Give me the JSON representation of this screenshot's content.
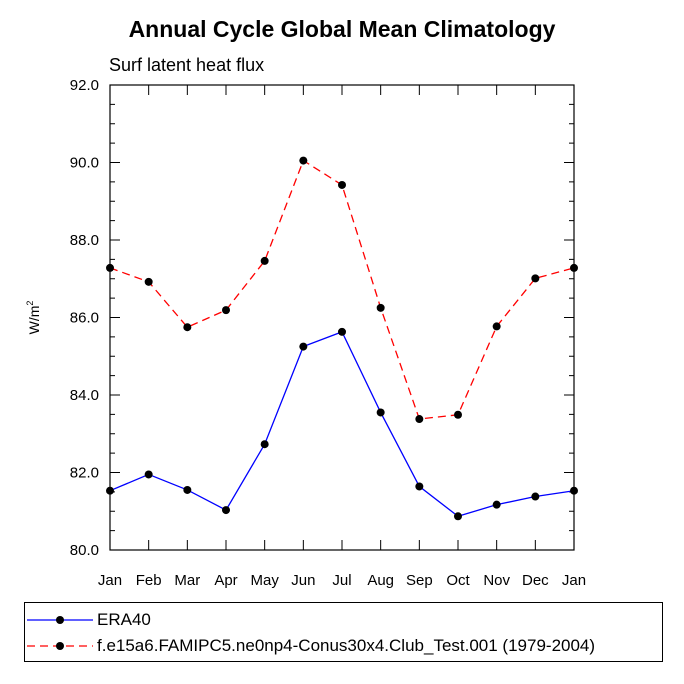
{
  "chart_data": {
    "type": "line",
    "title": "Annual Cycle Global Mean Climatology",
    "subtitle": "Surf latent heat flux",
    "xlabel": "",
    "ylabel": "W/m",
    "ylabel_superscript": "2",
    "categories": [
      "Jan",
      "Feb",
      "Mar",
      "Apr",
      "May",
      "Jun",
      "Jul",
      "Aug",
      "Sep",
      "Oct",
      "Nov",
      "Dec",
      "Jan"
    ],
    "ylim": [
      80.0,
      92.0
    ],
    "yticks": [
      "80.0",
      "82.0",
      "84.0",
      "86.0",
      "88.0",
      "90.0",
      "92.0"
    ],
    "grid": false,
    "legend_position": "bottom",
    "series": [
      {
        "name": "ERA40",
        "color": "#0000ff",
        "dash": "solid",
        "values": [
          81.53,
          81.95,
          81.55,
          81.03,
          82.73,
          85.25,
          85.63,
          83.55,
          81.64,
          80.87,
          81.17,
          81.38,
          81.53
        ]
      },
      {
        "name": "f.e15a6.FAMIPC5.ne0np4-Conus30x4.Club_Test.001 (1979-2004)",
        "color": "#ff0000",
        "dash": "dashed",
        "values": [
          87.28,
          86.92,
          85.75,
          86.19,
          87.46,
          90.05,
          89.42,
          86.25,
          83.38,
          83.49,
          85.77,
          87.01,
          87.28
        ]
      }
    ]
  }
}
